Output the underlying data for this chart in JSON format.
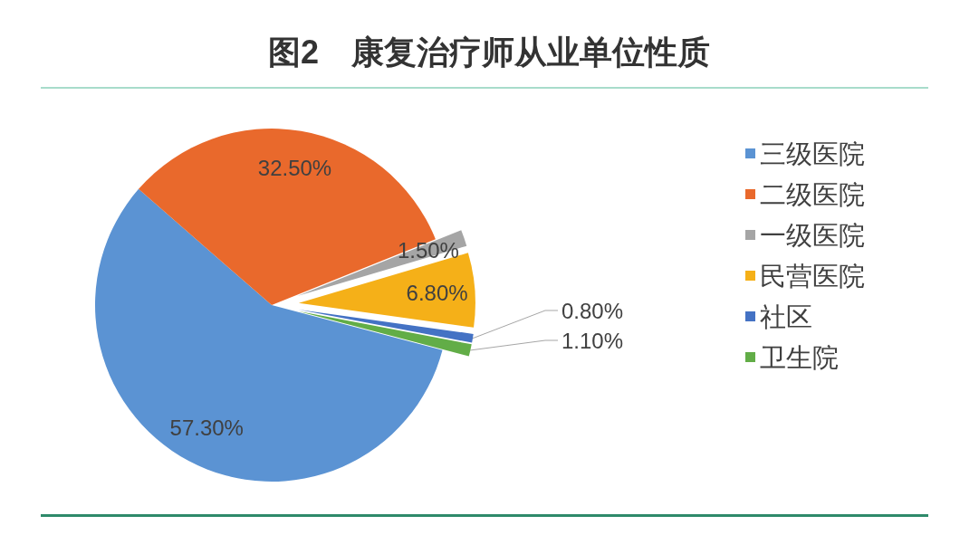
{
  "chart_data": {
    "type": "pie",
    "title": "图2　康复治疗师从业单位性质",
    "categories": [
      "三级医院",
      "二级医院",
      "一级医院",
      "民营医院",
      "社区",
      "卫生院"
    ],
    "values": [
      57.3,
      32.5,
      1.5,
      6.8,
      0.8,
      1.1
    ],
    "colors": [
      "#5b93d3",
      "#e9692c",
      "#a5a5a5",
      "#f5b018",
      "#4472c4",
      "#62ad47"
    ],
    "value_labels": [
      "57.30%",
      "32.50%",
      "1.50%",
      "6.80%",
      "0.80%",
      "1.10%"
    ],
    "legend": "right"
  }
}
